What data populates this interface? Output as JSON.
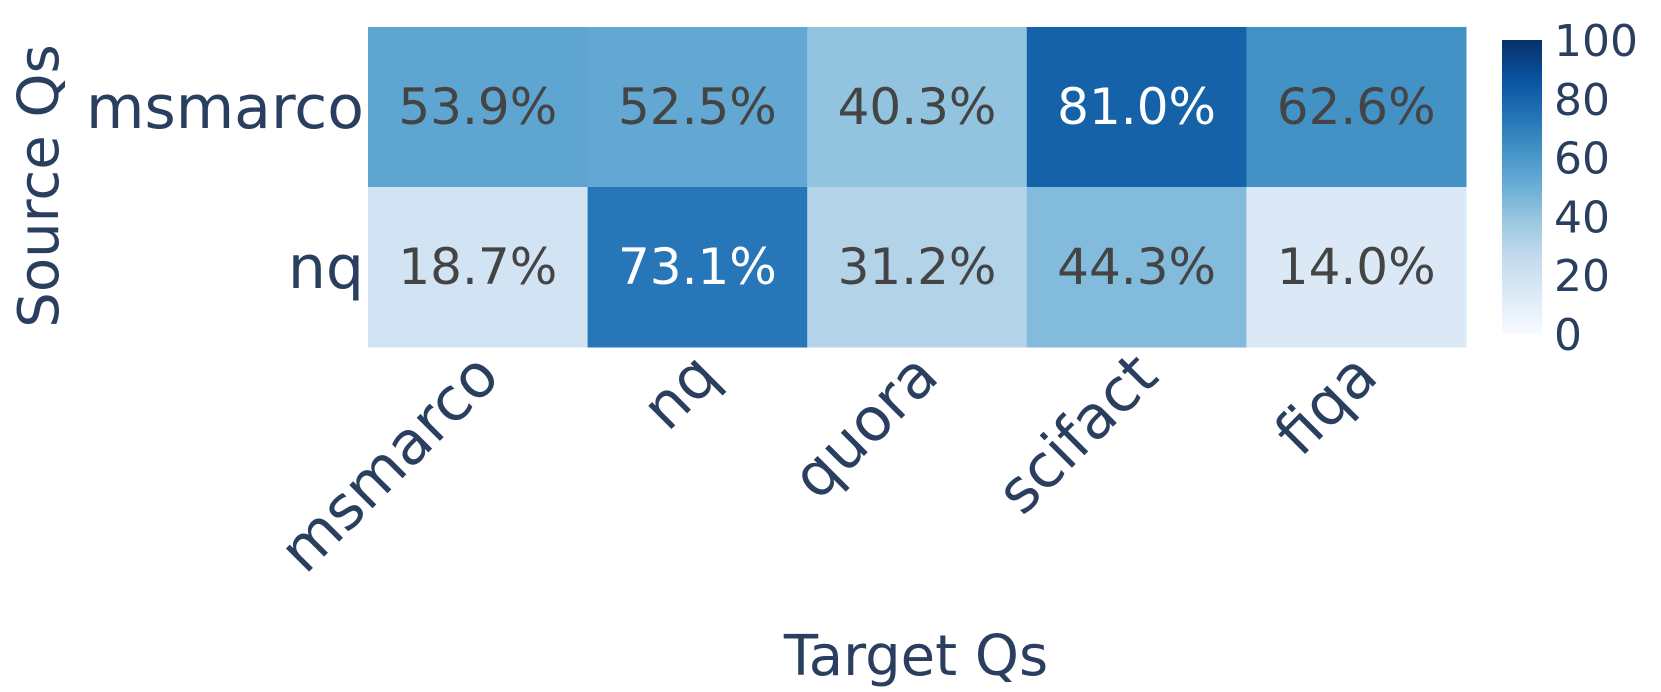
{
  "chart_data": {
    "type": "heatmap",
    "xlabel": "Target Qs",
    "ylabel": "Source Qs",
    "x_categories": [
      "msmarco",
      "nq",
      "quora",
      "scifact",
      "fiqa"
    ],
    "y_categories": [
      "msmarco",
      "nq"
    ],
    "values": [
      [
        53.9,
        52.5,
        40.3,
        81.0,
        62.6
      ],
      [
        18.7,
        73.1,
        31.2,
        44.3,
        14.0
      ]
    ],
    "cell_labels": [
      [
        "53.9%",
        "52.5%",
        "40.3%",
        "81.0%",
        "62.6%"
      ],
      [
        "18.7%",
        "73.1%",
        "31.2%",
        "44.3%",
        "14.0%"
      ]
    ],
    "colorbar": {
      "range": [
        0,
        100
      ],
      "ticks": [
        "0",
        "20",
        "40",
        "60",
        "80",
        "100"
      ],
      "colorscale": "Blues"
    }
  }
}
